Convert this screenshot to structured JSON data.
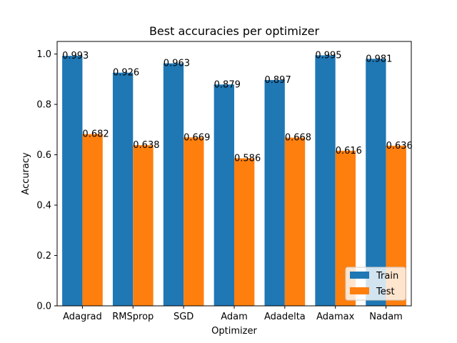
{
  "chart_data": {
    "type": "bar",
    "title": "Best accuracies per optimizer",
    "xlabel": "Optimizer",
    "ylabel": "Accuracy",
    "categories": [
      "Adagrad",
      "RMSprop",
      "SGD",
      "Adam",
      "Adadelta",
      "Adamax",
      "Nadam"
    ],
    "series": [
      {
        "name": "Train",
        "color": "#1f77b4",
        "values": [
          0.993,
          0.926,
          0.963,
          0.879,
          0.897,
          0.995,
          0.981
        ],
        "value_labels": [
          "0.993",
          "0.926",
          "0.963",
          "0.879",
          "0.897",
          "0.995",
          "0.981"
        ]
      },
      {
        "name": "Test",
        "color": "#ff7f0e",
        "values": [
          0.682,
          0.638,
          0.669,
          0.586,
          0.668,
          0.616,
          0.636
        ],
        "value_labels": [
          "0.682",
          "0.638",
          "0.669",
          "0.586",
          "0.668",
          "0.616",
          "0.636"
        ]
      }
    ],
    "ylim": [
      0,
      1.05
    ],
    "yticks": [
      0.0,
      0.2,
      0.4,
      0.6,
      0.8,
      1.0
    ],
    "ytick_labels": [
      "0.0",
      "0.2",
      "0.4",
      "0.6",
      "0.8",
      "1.0"
    ],
    "grid": false,
    "legend_placement": "lower-right"
  }
}
